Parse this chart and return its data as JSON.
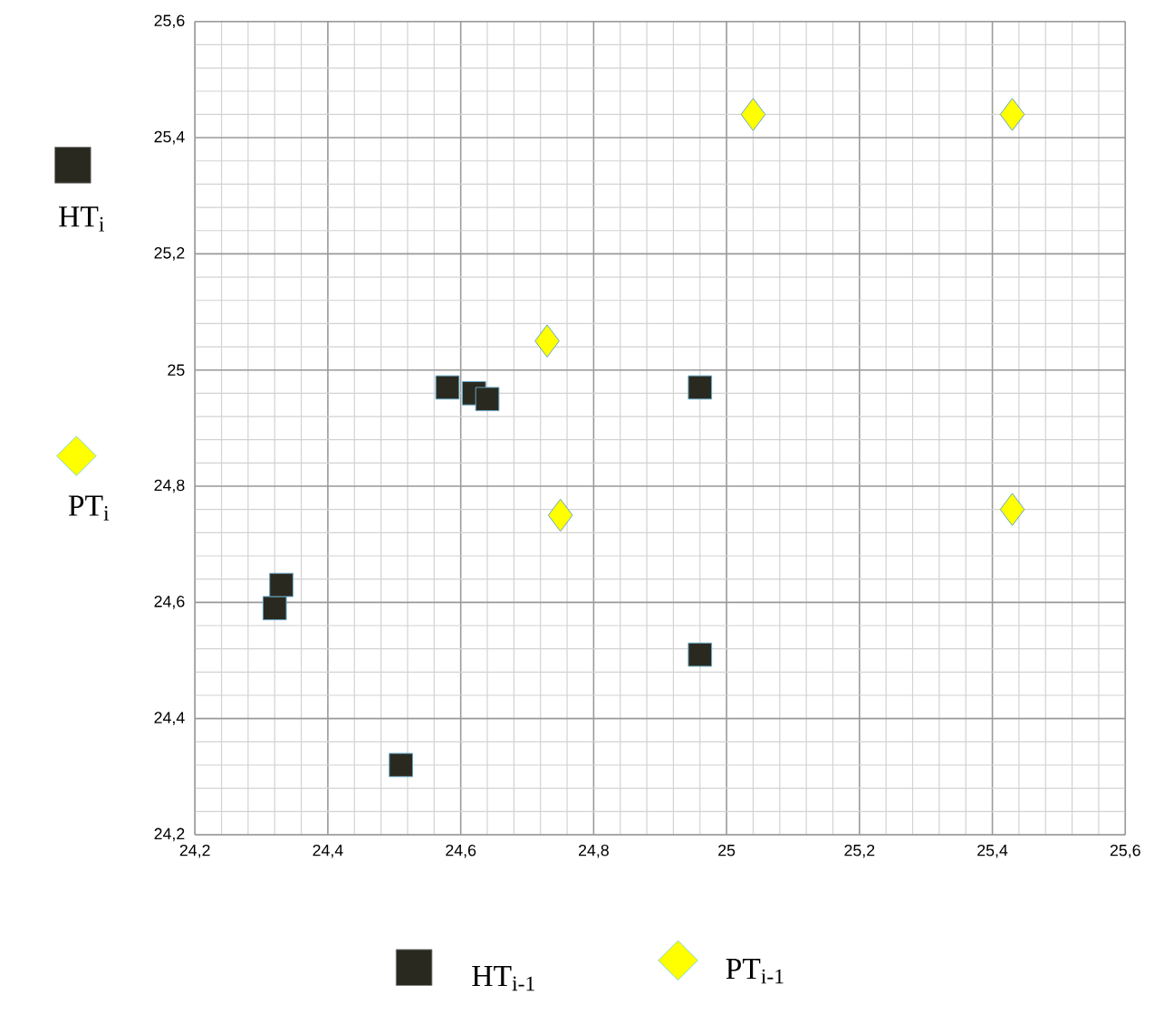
{
  "chart_data": {
    "type": "scatter",
    "series": [
      {
        "name": "HT$_{i}$",
        "color": "#2a2920",
        "marker": "square",
        "x": [
          24.58,
          24.62,
          24.64,
          24.96,
          24.32,
          24.33,
          24.96,
          24.51
        ],
        "values": [
          24.97,
          24.96,
          24.95,
          24.97,
          24.59,
          24.63,
          24.51,
          24.32
        ]
      },
      {
        "name": "PT$_{i}$",
        "color": "#ffff00",
        "marker": "diamond",
        "x": [
          25.04,
          25.43,
          25.43,
          24.73,
          24.75
        ],
        "values": [
          25.44,
          25.44,
          24.76,
          25.05,
          24.75
        ]
      }
    ],
    "annotations": [
      "HT$_{i-1}$",
      "PT$_{i-1}$"
    ],
    "xlim": [
      24.2,
      25.6
    ],
    "ylim": [
      24.2,
      25.6
    ],
    "xticks": [
      {
        "value": 24.2,
        "label": "24,2"
      },
      {
        "value": 24.4,
        "label": "24,4"
      },
      {
        "value": 24.6,
        "label": "24,6"
      },
      {
        "value": 24.8,
        "label": "24,8"
      },
      25,
      {
        "value": 25.2,
        "label": "25,2"
      },
      {
        "value": 25.4,
        "label": "25,4"
      },
      {
        "value": 25.6,
        "label": "25,6"
      }
    ],
    "yticks": [
      {
        "value": 24.2,
        "label": "24,2"
      },
      {
        "value": 24.4,
        "label": "24,4"
      },
      {
        "value": 24.6,
        "label": "24,6"
      },
      {
        "value": 24.8,
        "label": "24,8"
      },
      25,
      {
        "value": 25.2,
        "label": "25,2"
      },
      {
        "value": 25.4,
        "label": "25,4"
      },
      {
        "value": 25.6,
        "label": "25,6"
      }
    ],
    "grid": true,
    "legend": "left"
  }
}
